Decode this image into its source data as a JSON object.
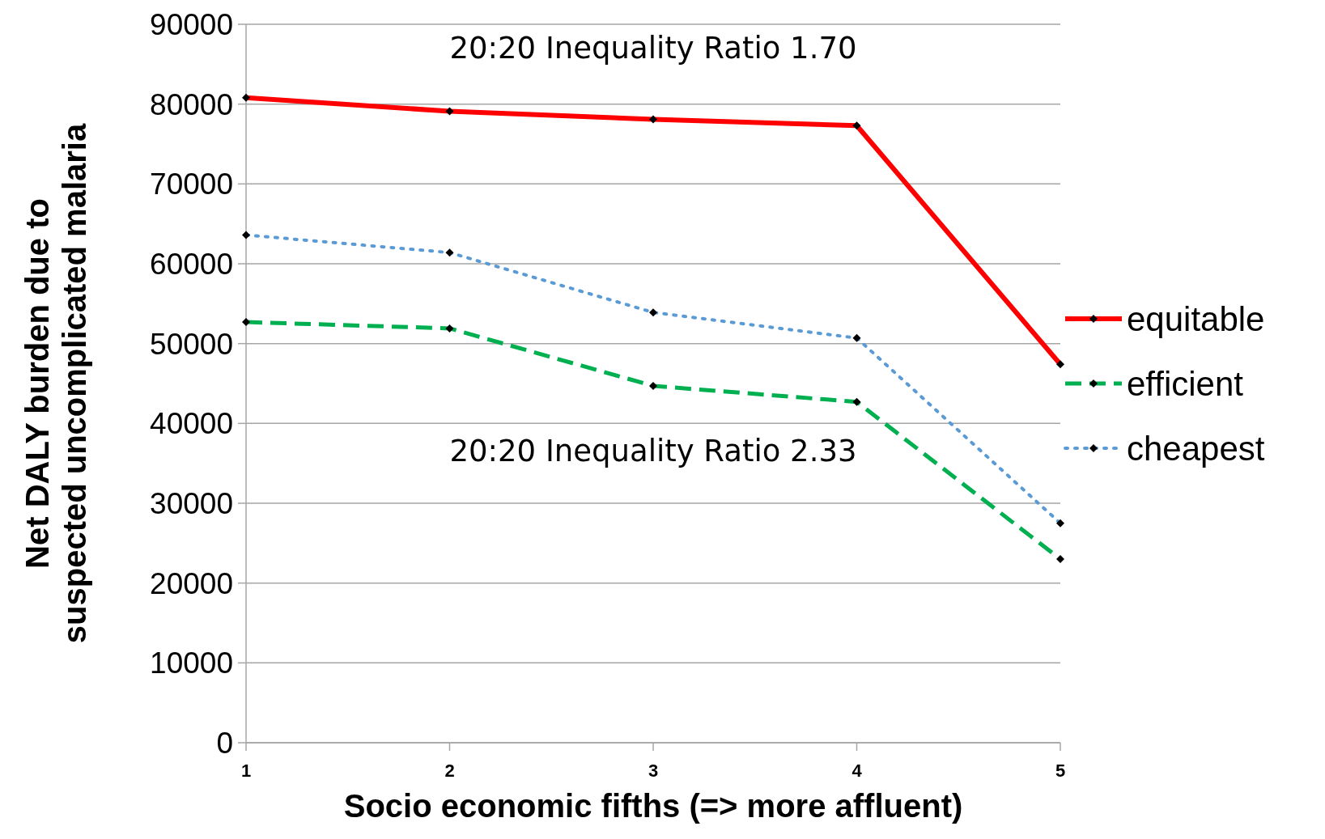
{
  "chart_data": {
    "type": "line",
    "xlabel": "Socio economic fifths (=> more affluent)",
    "ylabel": "Net DALY burden due to suspected uncomplicated malaria",
    "categories": [
      "1",
      "2",
      "3",
      "4",
      "5"
    ],
    "series": [
      {
        "name": "equitable",
        "color": "#ff0000",
        "line_style": "solid",
        "values": [
          80800,
          79100,
          78100,
          77300,
          47400
        ]
      },
      {
        "name": "efficient",
        "color": "#00b050",
        "line_style": "dashed",
        "values": [
          52700,
          51900,
          44700,
          42700,
          23000
        ]
      },
      {
        "name": "cheapest",
        "color": "#5b9bd5",
        "line_style": "dotted",
        "values": [
          63600,
          61400,
          53900,
          50700,
          27500
        ]
      }
    ],
    "ylim": [
      0,
      90000
    ],
    "yticks": [
      0,
      10000,
      20000,
      30000,
      40000,
      50000,
      60000,
      70000,
      80000,
      90000
    ],
    "grid": "y",
    "legend": "right",
    "marker": "diamond",
    "annotations": [
      "20:20 Inequality Ratio 1.70",
      "20:20 Inequality Ratio 2.33"
    ]
  }
}
